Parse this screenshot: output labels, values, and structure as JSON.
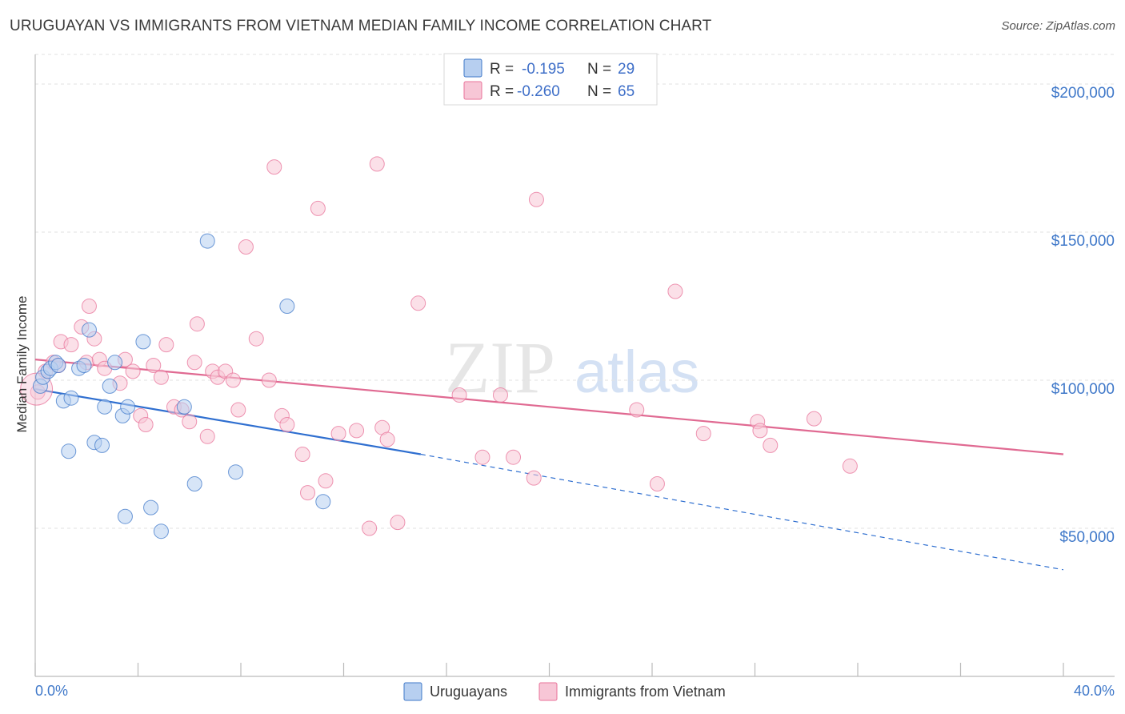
{
  "title": "URUGUAYAN VS IMMIGRANTS FROM VIETNAM MEDIAN FAMILY INCOME CORRELATION CHART",
  "source": "Source: ZipAtlas.com",
  "watermark": {
    "part1": "ZIP",
    "part2": "atlas"
  },
  "colors": {
    "blue": "#3f78c9",
    "blue_fill": "#b7cff0",
    "blue_line": "#2f6fd0",
    "pink": "#e8739a",
    "pink_fill": "#f7c6d6",
    "pink_line": "#e06a92",
    "grid": "#e2e2e2"
  },
  "legend": {
    "rows": [
      {
        "series": "uruguayans",
        "r_label": "R =",
        "r_value": "-0.195",
        "n_label": "N =",
        "n_value": "29"
      },
      {
        "series": "vietnam",
        "r_label": "R =",
        "r_value": "-0.260",
        "n_label": "N =",
        "n_value": "65"
      }
    ]
  },
  "bottom_legend": [
    "Uruguayans",
    "Immigrants from Vietnam"
  ],
  "chart_data": {
    "type": "scatter",
    "title": "URUGUAYAN VS IMMIGRANTS FROM VIETNAM MEDIAN FAMILY INCOME CORRELATION CHART",
    "xlabel": "",
    "ylabel": "Median Family Income",
    "xlim": [
      0,
      40
    ],
    "ylim": [
      0,
      210000
    ],
    "x_tick_labels": [
      "0.0%",
      "40.0%"
    ],
    "y_ticks": [
      50000,
      100000,
      150000,
      200000
    ],
    "y_tick_labels": [
      "$50,000",
      "$100,000",
      "$150,000",
      "$200,000"
    ],
    "series": [
      {
        "name": "Uruguayans",
        "color": "blue",
        "points": [
          [
            0.2,
            98000
          ],
          [
            0.3,
            101000
          ],
          [
            0.5,
            103000
          ],
          [
            0.6,
            104000
          ],
          [
            0.8,
            106000
          ],
          [
            0.9,
            105000
          ],
          [
            1.1,
            93000
          ],
          [
            1.4,
            94000
          ],
          [
            1.3,
            76000
          ],
          [
            1.7,
            104000
          ],
          [
            1.9,
            105000
          ],
          [
            2.1,
            117000
          ],
          [
            2.3,
            79000
          ],
          [
            2.6,
            78000
          ],
          [
            2.7,
            91000
          ],
          [
            2.9,
            98000
          ],
          [
            3.1,
            106000
          ],
          [
            3.4,
            88000
          ],
          [
            3.5,
            54000
          ],
          [
            3.6,
            91000
          ],
          [
            4.2,
            113000
          ],
          [
            4.5,
            57000
          ],
          [
            4.9,
            49000
          ],
          [
            5.8,
            91000
          ],
          [
            6.2,
            65000
          ],
          [
            6.7,
            147000
          ],
          [
            7.8,
            69000
          ],
          [
            9.8,
            125000
          ],
          [
            11.2,
            59000
          ]
        ],
        "trend": {
          "x0": 0,
          "y0": 97000,
          "x_solid_end": 15,
          "y_solid_end": 75000,
          "x1": 40,
          "y1": 36000
        }
      },
      {
        "name": "Immigrants from Vietnam",
        "color": "pink",
        "points": [
          [
            0.1,
            96000
          ],
          [
            0.4,
            103000
          ],
          [
            0.7,
            106000
          ],
          [
            0.9,
            105000
          ],
          [
            1.0,
            113000
          ],
          [
            1.4,
            112000
          ],
          [
            1.8,
            118000
          ],
          [
            2.0,
            106000
          ],
          [
            2.1,
            125000
          ],
          [
            2.3,
            114000
          ],
          [
            2.5,
            107000
          ],
          [
            2.7,
            104000
          ],
          [
            3.3,
            99000
          ],
          [
            3.5,
            107000
          ],
          [
            3.8,
            103000
          ],
          [
            4.1,
            88000
          ],
          [
            4.3,
            85000
          ],
          [
            4.6,
            105000
          ],
          [
            4.9,
            101000
          ],
          [
            5.1,
            112000
          ],
          [
            5.4,
            91000
          ],
          [
            5.7,
            90000
          ],
          [
            6.0,
            86000
          ],
          [
            6.2,
            106000
          ],
          [
            6.3,
            119000
          ],
          [
            6.7,
            81000
          ],
          [
            6.9,
            103000
          ],
          [
            7.1,
            101000
          ],
          [
            7.4,
            103000
          ],
          [
            7.7,
            100000
          ],
          [
            7.9,
            90000
          ],
          [
            8.2,
            145000
          ],
          [
            8.6,
            114000
          ],
          [
            9.1,
            100000
          ],
          [
            9.3,
            172000
          ],
          [
            9.6,
            88000
          ],
          [
            9.8,
            85000
          ],
          [
            10.4,
            75000
          ],
          [
            10.6,
            62000
          ],
          [
            11.0,
            158000
          ],
          [
            11.3,
            66000
          ],
          [
            11.8,
            82000
          ],
          [
            12.5,
            83000
          ],
          [
            13.0,
            50000
          ],
          [
            13.3,
            173000
          ],
          [
            13.5,
            84000
          ],
          [
            13.7,
            80000
          ],
          [
            14.1,
            52000
          ],
          [
            14.9,
            126000
          ],
          [
            16.5,
            95000
          ],
          [
            17.4,
            74000
          ],
          [
            18.1,
            95000
          ],
          [
            18.6,
            74000
          ],
          [
            19.4,
            67000
          ],
          [
            19.5,
            161000
          ],
          [
            23.4,
            90000
          ],
          [
            24.2,
            65000
          ],
          [
            24.9,
            130000
          ],
          [
            26.0,
            82000
          ],
          [
            28.1,
            86000
          ],
          [
            28.2,
            83000
          ],
          [
            28.6,
            78000
          ],
          [
            30.3,
            87000
          ],
          [
            31.7,
            71000
          ],
          [
            0.05,
            97000
          ]
        ],
        "trend": {
          "x0": 0,
          "y0": 107000,
          "x1": 40,
          "y1": 75000
        }
      }
    ]
  }
}
